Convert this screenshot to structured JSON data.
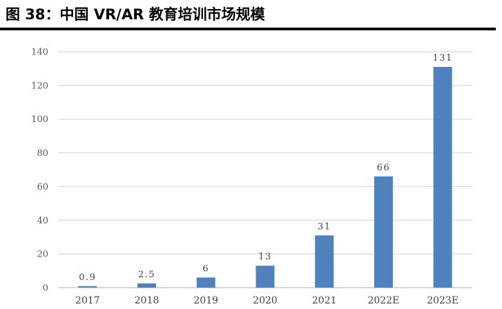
{
  "figure": {
    "title": "图 38：中国 VR/AR 教育培训市场规模"
  },
  "colors": {
    "bar": "#4f81bd",
    "grid": "#d9d9d9",
    "axis": "#bfbfbf",
    "title_rule": "#000000"
  },
  "chart_data": {
    "type": "bar",
    "title": "",
    "xlabel": "",
    "ylabel": "",
    "categories": [
      "2017",
      "2018",
      "2019",
      "2020",
      "2021",
      "2022E",
      "2023E"
    ],
    "values": [
      0.9,
      2.5,
      6,
      13,
      31,
      66,
      131
    ],
    "value_labels": [
      "0.9",
      "2.5",
      "6",
      "13",
      "31",
      "66",
      "131"
    ],
    "ylim": [
      0,
      140
    ],
    "yticks": [
      0,
      20,
      40,
      60,
      80,
      100,
      120,
      140
    ],
    "grid": true,
    "legend": "none"
  }
}
